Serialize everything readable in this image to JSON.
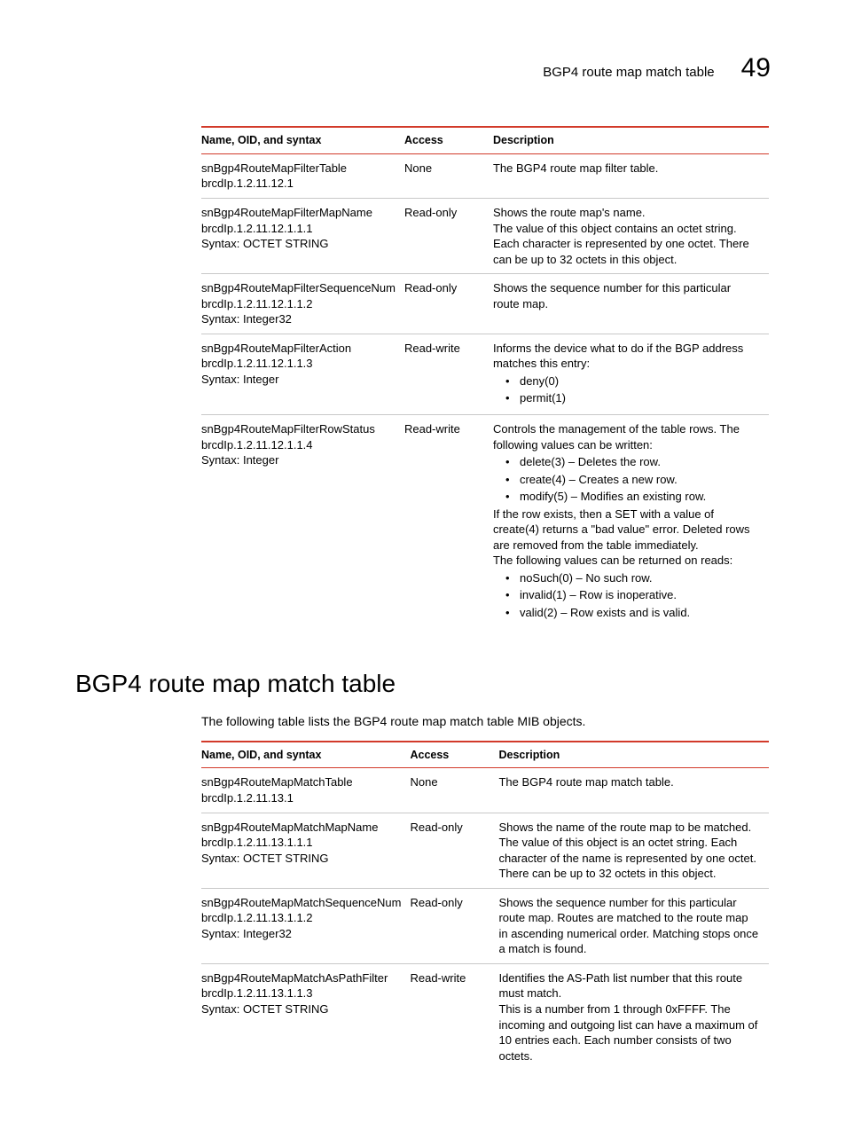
{
  "header": {
    "title": "BGP4 route map match table",
    "chapter_num": "49"
  },
  "table1": {
    "cols": [
      "Name, OID, and syntax",
      "Access",
      "Description"
    ],
    "rows": [
      {
        "name": [
          "snBgp4RouteMapFilterTable",
          "brcdIp.1.2.11.12.1"
        ],
        "access": "None",
        "desc_text": "The BGP4 route map filter table."
      },
      {
        "name": [
          "snBgp4RouteMapFilterMapName",
          "brcdIp.1.2.11.12.1.1.1",
          "Syntax: OCTET STRING"
        ],
        "access": "Read-only",
        "desc_text": "Shows the route map's name.\nThe value of this object contains an octet string. Each character is represented by one octet. There can be up to 32 octets in this object."
      },
      {
        "name": [
          "snBgp4RouteMapFilterSequenceNum",
          "brcdIp.1.2.11.12.1.1.2",
          "Syntax: Integer32"
        ],
        "access": "Read-only",
        "desc_text": "Shows the sequence number for this particular route map."
      },
      {
        "name": [
          "snBgp4RouteMapFilterAction",
          "brcdIp.1.2.11.12.1.1.3",
          "Syntax: Integer"
        ],
        "access": "Read-write",
        "desc_pre": "Informs the device what to do if the BGP address matches this entry:",
        "bullets": [
          "deny(0)",
          "permit(1)"
        ]
      },
      {
        "name": [
          "snBgp4RouteMapFilterRowStatus",
          "brcdIp.1.2.11.12.1.1.4",
          "Syntax: Integer"
        ],
        "access": "Read-write",
        "desc_pre": "Controls the management of the table rows. The following values can be written:",
        "bullets": [
          "delete(3) – Deletes the row.",
          "create(4) – Creates a new row.",
          "modify(5) – Modifies an existing row."
        ],
        "desc_mid": "If the row exists, then a SET with a value of create(4) returns a \"bad value\" error. Deleted rows are removed from the table immediately.\nThe following values can be returned on reads:",
        "bullets2": [
          "noSuch(0) – No such row.",
          "invalid(1) – Row is inoperative.",
          "valid(2) – Row exists and is valid."
        ]
      }
    ]
  },
  "section_title": "BGP4 route map match table",
  "intro": "The following table lists the BGP4 route map match table MIB objects.",
  "table2": {
    "cols": [
      "Name, OID, and syntax",
      "Access",
      "Description"
    ],
    "rows": [
      {
        "name": [
          "snBgp4RouteMapMatchTable",
          "brcdIp.1.2.11.13.1"
        ],
        "access": "None",
        "desc_text": "The BGP4 route map match table."
      },
      {
        "name": [
          "snBgp4RouteMapMatchMapName",
          "brcdIp.1.2.11.13.1.1.1",
          "Syntax: OCTET STRING"
        ],
        "access": "Read-only",
        "desc_text": "Shows the name of the route map to be matched.\nThe value of this object is an octet string. Each character of the name is represented by one octet. There can be up to 32 octets in this object."
      },
      {
        "name": [
          "snBgp4RouteMapMatchSequenceNum",
          "brcdIp.1.2.11.13.1.1.2",
          "Syntax: Integer32"
        ],
        "access": "Read-only",
        "desc_text": "Shows the sequence number for this particular route map. Routes are matched to the route map in ascending numerical order. Matching stops once a match is found."
      },
      {
        "name": [
          "snBgp4RouteMapMatchAsPathFilter",
          "brcdIp.1.2.11.13.1.1.3",
          "Syntax: OCTET STRING"
        ],
        "access": "Read-write",
        "desc_text": "Identifies the AS-Path list number that this route must match.\nThis is a number from 1 through 0xFFFF. The incoming and outgoing list can have a maximum of 10 entries each. Each number consists of two octets."
      }
    ]
  }
}
